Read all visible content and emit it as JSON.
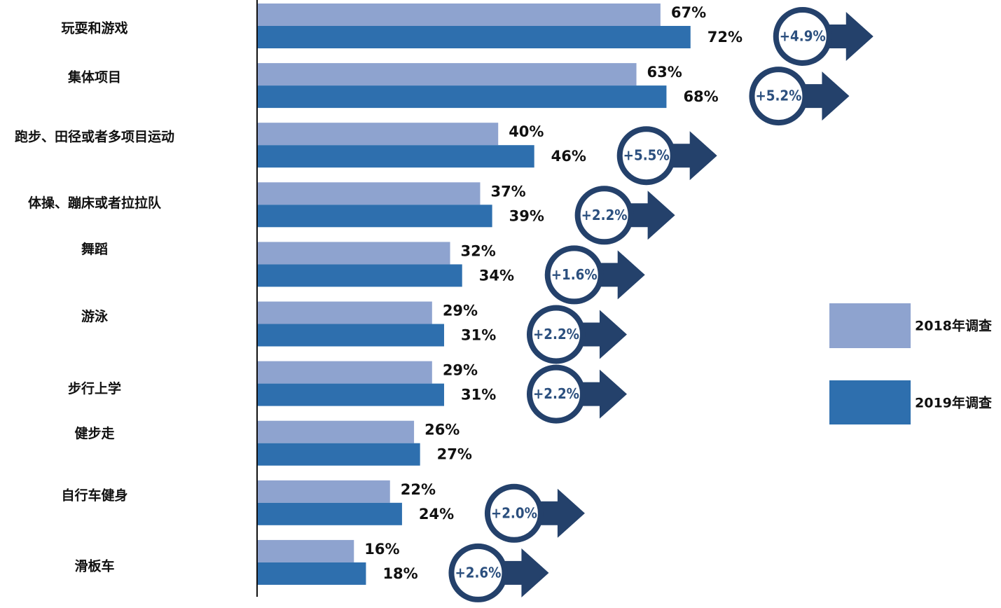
{
  "chart_data": {
    "type": "bar",
    "orientation": "horizontal",
    "categories": [
      "玩耍和游戏",
      "集体项目",
      "跑步、田径或者多项目运动",
      "体操、蹦床或者拉拉队",
      "舞蹈",
      "游泳",
      "步行上学",
      "健步走",
      "自行车健身",
      "滑板车"
    ],
    "series": [
      {
        "name": "2018年调查",
        "values": [
          67,
          63,
          40,
          37,
          32,
          29,
          29,
          26,
          22,
          16
        ],
        "labels": [
          "67%",
          "63%",
          "40%",
          "37%",
          "32%",
          "29%",
          "29%",
          "26%",
          "22%",
          "16%"
        ]
      },
      {
        "name": "2019年调查",
        "values": [
          72,
          68,
          46,
          39,
          34,
          31,
          31,
          27,
          24,
          18
        ],
        "labels": [
          "72%",
          "68%",
          "46%",
          "39%",
          "34%",
          "31%",
          "31%",
          "27%",
          "24%",
          "18%"
        ]
      }
    ],
    "changes": [
      "+4.9%",
      "+5.2%",
      "+5.5%",
      "+2.2%",
      "+1.6%",
      "+2.2%",
      "+2.2%",
      "",
      "+2.0%",
      "+2.6%"
    ],
    "legend_position": "right",
    "grid": false,
    "colors": {
      "series_2018": "#8ea3cf",
      "series_2019": "#2e6fae",
      "badge": "#24416b"
    }
  }
}
